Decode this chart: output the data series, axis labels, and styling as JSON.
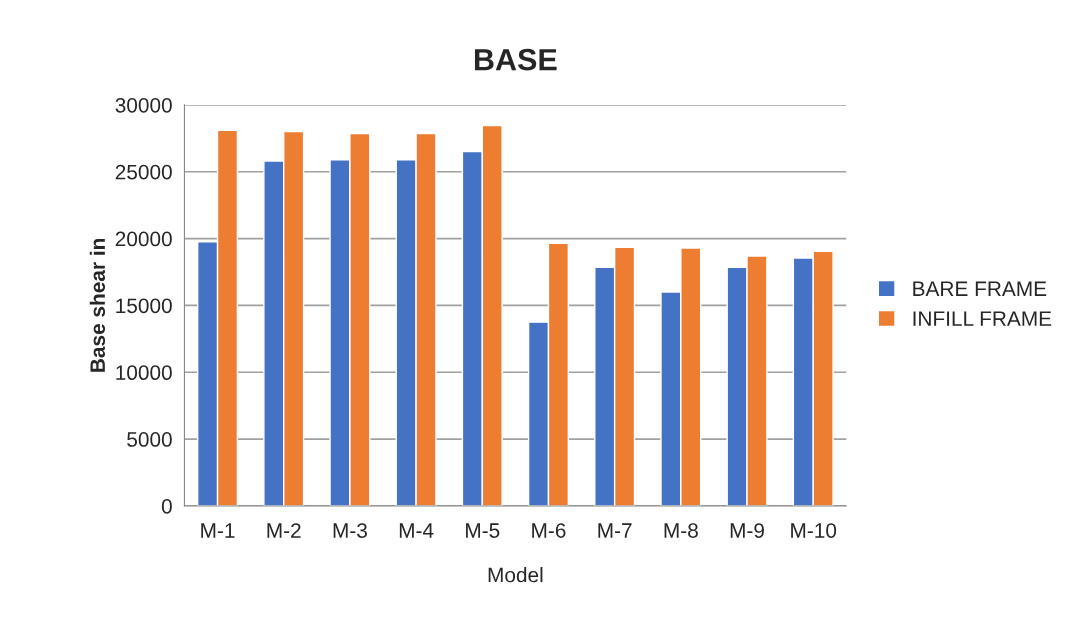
{
  "chart_data": {
    "type": "bar",
    "title": "BASE",
    "xlabel": "Model",
    "ylabel": "Base shear in",
    "categories": [
      "M-1",
      "M-2",
      "M-3",
      "M-4",
      "M-5",
      "M-6",
      "M-7",
      "M-8",
      "M-9",
      "M-10"
    ],
    "series": [
      {
        "name": "BARE FRAME",
        "color": "#4472c4",
        "values": [
          19750,
          25800,
          25900,
          25900,
          26500,
          13750,
          17850,
          16000,
          17850,
          18550
        ]
      },
      {
        "name": "INFILL FRAME",
        "color": "#ed7d31",
        "values": [
          28100,
          28000,
          27850,
          27850,
          28450,
          19650,
          19350,
          19300,
          18700,
          19050
        ]
      }
    ],
    "ylim": [
      0,
      30000
    ],
    "yticks": [
      0,
      5000,
      10000,
      15000,
      20000,
      25000,
      30000
    ],
    "grid": "y",
    "legend": "right"
  }
}
